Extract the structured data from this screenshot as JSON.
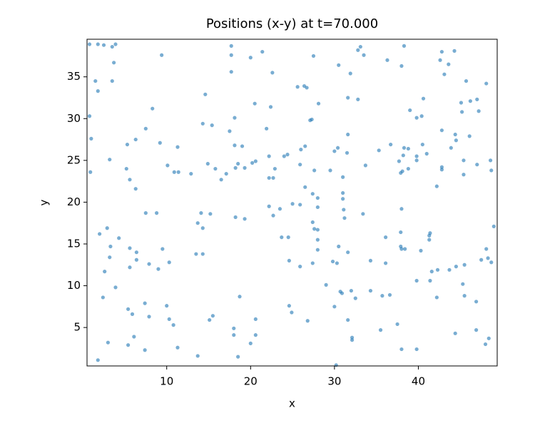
{
  "chart_data": {
    "type": "scatter",
    "title": "Positions (x-y) at t=70.000",
    "x_label": "x",
    "y_label": "y",
    "color": "#1f77b4",
    "alpha": 0.6,
    "grid": false,
    "xlim": [
      0.5,
      49.4
    ],
    "ylim": [
      0.4,
      39.5
    ],
    "xticks": [
      10,
      20,
      30,
      40
    ],
    "yticks": [
      5,
      10,
      15,
      20,
      25,
      30,
      35
    ],
    "x": [
      0.8,
      1.8,
      2.5,
      3.5,
      3.9,
      3.7,
      1.5,
      1.8,
      3.5,
      0.8,
      1.0,
      0.9,
      3.2,
      2.0,
      2.9,
      3.3,
      3.2,
      4.3,
      2.6,
      3.9,
      2.4,
      3.0,
      1.8,
      5.2,
      5.6,
      6.3,
      6.3,
      5.3,
      8.3,
      7.5,
      9.4,
      9.2,
      10.1,
      10.9,
      11.4,
      11.3,
      12.9,
      7.5,
      8.8,
      5.6,
      6.4,
      6.4,
      5.6,
      7.9,
      9.5,
      10.3,
      9.0,
      7.4,
      7.9,
      10.0,
      10.3,
      10.8,
      5.4,
      5.9,
      5.4,
      6.1,
      7.4,
      11.3,
      14.6,
      14.3,
      15.4,
      14.9,
      15.8,
      16.5,
      17.1,
      17.5,
      17.7,
      17.7,
      17.7,
      18.1,
      18.1,
      19.0,
      18.2,
      18.5,
      19.3,
      20.0,
      20.5,
      21.4,
      21.9,
      22.6,
      22.4,
      20.2,
      20.6,
      22.2,
      22.9,
      22.2,
      22.7,
      14.1,
      15.2,
      13.7,
      14.3,
      18.2,
      19.3,
      22.2,
      22.7,
      23.5,
      13.5,
      14.3,
      18.7,
      15.5,
      15.1,
      18.0,
      18.0,
      20.6,
      20.6,
      20.0,
      13.7,
      18.5,
      25.6,
      26.4,
      26.7,
      27.5,
      27.1,
      27.3,
      28.1,
      24.0,
      24.4,
      26.0,
      26.5,
      27.6,
      25.9,
      29.5,
      26.5,
      27.4,
      25.0,
      25.9,
      28.0,
      28.0,
      23.7,
      24.5,
      27.4,
      27.6,
      28.0,
      28.0,
      28.0,
      24.6,
      25.9,
      27.4,
      29.0,
      24.6,
      24.9,
      26.8,
      30.5,
      31.9,
      32.8,
      33.1,
      33.5,
      31.6,
      32.8,
      30.0,
      30.4,
      31.5,
      33.7,
      31.0,
      31.0,
      31.0,
      31.6,
      31.1,
      31.2,
      33.4,
      30.5,
      31.6,
      29.8,
      30.3,
      30.7,
      30.9,
      32.0,
      30.0,
      32.5,
      31.6,
      32.1,
      32.1,
      30.2,
      36.3,
      38.3,
      38.0,
      39.0,
      39.8,
      40.4,
      40.6,
      35.3,
      36.7,
      38.3,
      38.8,
      37.7,
      38.2,
      38.8,
      39.8,
      39.8,
      40.5,
      41.0,
      37.9,
      38.1,
      38.0,
      36.1,
      37.9,
      37.9,
      38.0,
      38.4,
      40.3,
      41.3,
      41.3,
      41.4,
      36.1,
      34.3,
      34.3,
      35.7,
      36.6,
      39.8,
      41.4,
      41.6,
      42.3,
      35.5,
      37.5,
      38.0,
      39.8,
      42.6,
      42.8,
      43.6,
      44.3,
      43.1,
      45.7,
      48.1,
      45.1,
      46.2,
      47.0,
      47.2,
      45.2,
      42.8,
      44.4,
      44.5,
      46.1,
      43.9,
      45.4,
      47.0,
      48.6,
      48.7,
      42.8,
      42.8,
      45.4,
      42.2,
      49.0,
      48.1,
      47.5,
      48.3,
      48.7,
      44.5,
      45.5,
      43.7,
      45.3,
      45.5,
      46.9,
      42.2,
      44.4,
      46.9,
      48.4,
      48.0
    ],
    "y": [
      38.9,
      38.9,
      38.8,
      38.6,
      38.9,
      36.7,
      34.5,
      33.3,
      34.5,
      30.3,
      27.6,
      23.6,
      25.1,
      16.2,
      16.9,
      14.7,
      13.4,
      15.7,
      11.7,
      9.8,
      8.6,
      3.2,
      1.1,
      24.0,
      22.7,
      21.6,
      27.5,
      26.9,
      31.2,
      28.8,
      37.6,
      27.1,
      24.4,
      23.6,
      23.6,
      26.6,
      23.4,
      18.7,
      18.7,
      14.5,
      14.0,
      13.1,
      12.2,
      12.6,
      14.4,
      12.8,
      12.0,
      7.9,
      6.3,
      7.6,
      6.0,
      5.3,
      7.2,
      6.6,
      2.9,
      3.9,
      2.3,
      2.6,
      32.9,
      29.4,
      29.2,
      24.6,
      24.0,
      22.7,
      23.4,
      28.5,
      35.6,
      37.6,
      38.7,
      30.1,
      26.8,
      26.7,
      24.1,
      24.6,
      24.1,
      37.3,
      31.8,
      38.0,
      28.8,
      35.5,
      31.4,
      24.7,
      24.9,
      25.5,
      24.0,
      22.9,
      22.9,
      18.7,
      18.6,
      17.5,
      16.9,
      18.2,
      18.0,
      19.5,
      18.4,
      19.2,
      13.8,
      13.8,
      8.7,
      6.4,
      5.9,
      4.9,
      4.1,
      6.0,
      4.1,
      3.1,
      1.6,
      1.5,
      33.8,
      33.9,
      33.7,
      37.5,
      29.8,
      29.9,
      31.8,
      25.5,
      25.7,
      26.3,
      26.7,
      23.8,
      24.5,
      23.8,
      21.8,
      21.0,
      19.8,
      19.7,
      20.5,
      19.4,
      15.8,
      15.8,
      17.6,
      16.8,
      16.7,
      15.5,
      14.3,
      13.0,
      12.3,
      12.7,
      10.1,
      7.6,
      6.8,
      5.8,
      36.4,
      35.4,
      38.2,
      38.6,
      37.6,
      32.5,
      32.3,
      26.1,
      26.5,
      25.9,
      24.4,
      23.0,
      21.1,
      20.4,
      28.1,
      19.1,
      18.1,
      18.6,
      14.7,
      14.0,
      12.9,
      12.7,
      9.3,
      9.1,
      9.4,
      7.5,
      8.5,
      5.9,
      3.8,
      3.5,
      0.5,
      37.0,
      38.7,
      36.3,
      31.0,
      30.1,
      30.3,
      32.4,
      26.2,
      26.9,
      26.5,
      26.4,
      24.9,
      25.6,
      24.0,
      25.5,
      25.0,
      26.9,
      25.8,
      23.5,
      23.7,
      19.2,
      15.8,
      16.4,
      14.7,
      14.4,
      14.4,
      14.2,
      15.5,
      16.0,
      16.3,
      12.7,
      13.0,
      9.4,
      8.8,
      8.9,
      10.6,
      10.6,
      11.7,
      11.9,
      4.7,
      5.4,
      2.4,
      2.4,
      37.0,
      38.0,
      36.5,
      38.1,
      35.3,
      34.5,
      34.2,
      31.9,
      32.1,
      32.3,
      30.9,
      30.8,
      28.6,
      28.1,
      27.4,
      27.9,
      26.5,
      25.0,
      24.5,
      25.0,
      23.8,
      24.2,
      23.9,
      23.3,
      21.9,
      17.1,
      14.4,
      13.1,
      13.3,
      12.8,
      12.3,
      12.5,
      11.9,
      10.2,
      8.8,
      8.1,
      8.6,
      4.3,
      4.7,
      3.7,
      3.0
    ]
  }
}
